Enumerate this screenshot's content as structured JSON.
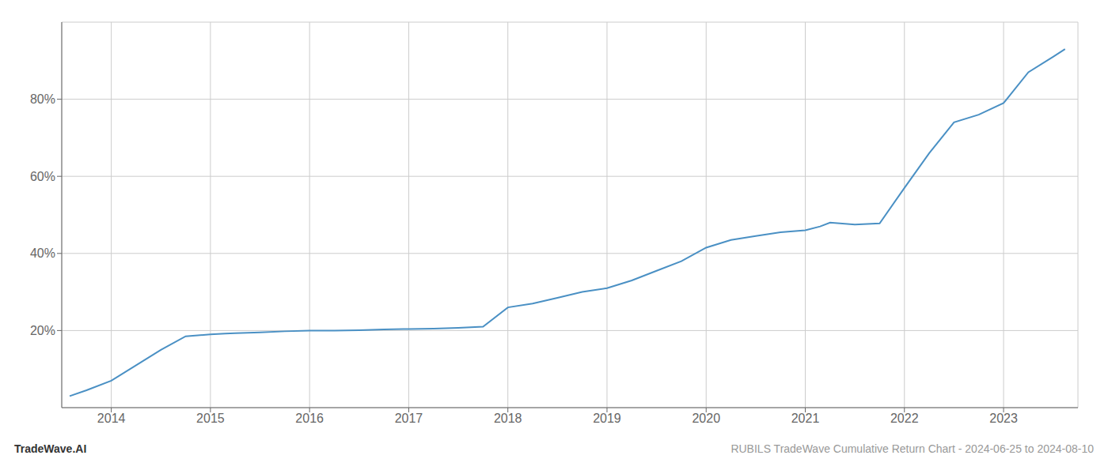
{
  "chart_data": {
    "type": "line",
    "annotations": [
      "TradeWave.AI",
      "RUBILS TradeWave Cumulative Return Chart - 2024-06-25 to 2024-08-10"
    ],
    "x": [
      2013.58,
      2013.75,
      2014.0,
      2014.25,
      2014.5,
      2014.75,
      2015.0,
      2015.15,
      2015.25,
      2015.5,
      2015.75,
      2016.0,
      2016.25,
      2016.5,
      2016.75,
      2017.0,
      2017.25,
      2017.5,
      2017.75,
      2018.0,
      2018.25,
      2018.5,
      2018.75,
      2019.0,
      2019.25,
      2019.5,
      2019.75,
      2020.0,
      2020.25,
      2020.5,
      2020.75,
      2021.0,
      2021.15,
      2021.25,
      2021.5,
      2021.75,
      2022.0,
      2022.25,
      2022.5,
      2022.75,
      2023.0,
      2023.25,
      2023.5,
      2023.62
    ],
    "values": [
      3.0,
      4.5,
      7.0,
      11.0,
      15.0,
      18.5,
      19.0,
      19.2,
      19.3,
      19.5,
      19.8,
      20.0,
      20.0,
      20.1,
      20.3,
      20.4,
      20.5,
      20.7,
      21.0,
      26.0,
      27.0,
      28.5,
      30.0,
      31.0,
      33.0,
      35.5,
      38.0,
      41.5,
      43.5,
      44.5,
      45.5,
      46.0,
      47.0,
      48.0,
      47.5,
      47.8,
      57.0,
      66.0,
      74.0,
      76.0,
      79.0,
      87.0,
      91.0,
      93.0
    ],
    "color": "#4a90c4",
    "xlim": [
      2013.5,
      2023.75
    ],
    "ylim": [
      0,
      100
    ],
    "xticks": [
      2014,
      2015,
      2016,
      2017,
      2018,
      2019,
      2020,
      2021,
      2022,
      2023
    ],
    "yticks": [
      {
        "value": 20,
        "label": "20%"
      },
      {
        "value": 40,
        "label": "40%"
      },
      {
        "value": 60,
        "label": "60%"
      },
      {
        "value": 80,
        "label": "80%"
      }
    ],
    "grid": true
  }
}
